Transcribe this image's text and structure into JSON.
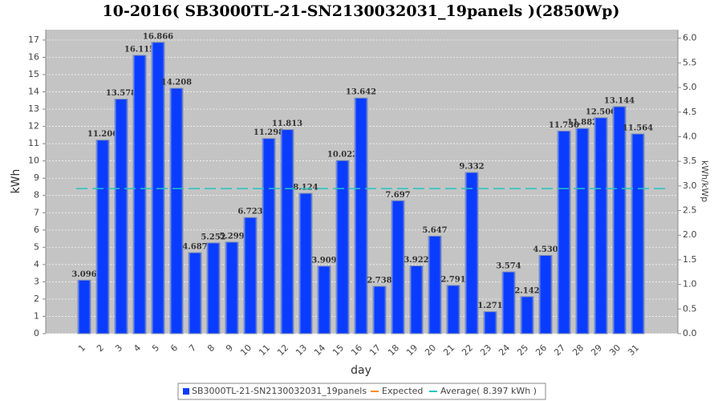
{
  "chart_data": {
    "type": "bar",
    "title": "10-2016( SB3000TL-21-SN2130032031_19panels )(2850Wp)",
    "x_label": "day",
    "y_label": "kWh",
    "y2_label": "kWh/kWp",
    "categories": [
      "1",
      "2",
      "3",
      "4",
      "5",
      "6",
      "7",
      "8",
      "9",
      "10",
      "11",
      "12",
      "13",
      "14",
      "15",
      "16",
      "17",
      "18",
      "19",
      "20",
      "21",
      "22",
      "23",
      "24",
      "25",
      "26",
      "27",
      "28",
      "29",
      "30",
      "31"
    ],
    "series": [
      {
        "name": "SB3000TL-21-SN2130032031_19panels",
        "color": "#0a3cff",
        "values": [
          3.096,
          11.206,
          13.578,
          16.115,
          16.866,
          14.208,
          4.687,
          5.252,
          5.299,
          6.723,
          11.298,
          11.813,
          8.124,
          3.909,
          10.022,
          13.642,
          2.738,
          7.697,
          3.922,
          5.647,
          2.791,
          9.332,
          1.271,
          3.574,
          2.142,
          4.53,
          11.73,
          11.882,
          12.5,
          13.144,
          11.564
        ],
        "value_labels": [
          "3.096",
          "11.206",
          "13.578",
          "16.115",
          "16.866",
          "14.208",
          "4.687",
          "5.252",
          "5.299",
          "6.723",
          "11.298",
          "11.813",
          "8.124",
          "3.909",
          "10.022",
          "13.642",
          "2.738",
          "7.697",
          "3.922",
          "5.647",
          "2.791",
          "9.332",
          "1.271",
          "3.574",
          "2.142",
          "4.530",
          "11.730",
          "11.882",
          "12.500",
          "13.144",
          "11.564"
        ]
      }
    ],
    "expected": {
      "name": "Expected",
      "color": "#ff8c1a"
    },
    "average": {
      "name": "Average( 8.397 kWh )",
      "value": 8.397,
      "color": "#22c4c4"
    },
    "ylim": [
      0,
      17.6
    ],
    "yticks": [
      0,
      1,
      2,
      3,
      4,
      5,
      6,
      7,
      8,
      9,
      10,
      11,
      12,
      13,
      14,
      15,
      16,
      17
    ],
    "y2lim": [
      0,
      6.175
    ],
    "y2ticks": [
      {
        "value": 0,
        "label": "0.0"
      },
      {
        "value": 0.5,
        "label": "0.5"
      },
      {
        "value": 1,
        "label": "1.0"
      },
      {
        "value": 1.5,
        "label": "1.5"
      },
      {
        "value": 2,
        "label": "2.0"
      },
      {
        "value": 2.5,
        "label": "2.5"
      },
      {
        "value": 3,
        "label": "3.0"
      },
      {
        "value": 3.5,
        "label": "3.5"
      },
      {
        "value": 4,
        "label": "4.0"
      },
      {
        "value": 4.5,
        "label": "4.5"
      },
      {
        "value": 5,
        "label": "5.0"
      },
      {
        "value": 5.5,
        "label": "5.5"
      },
      {
        "value": 6,
        "label": "6.0"
      }
    ],
    "grid": true
  }
}
